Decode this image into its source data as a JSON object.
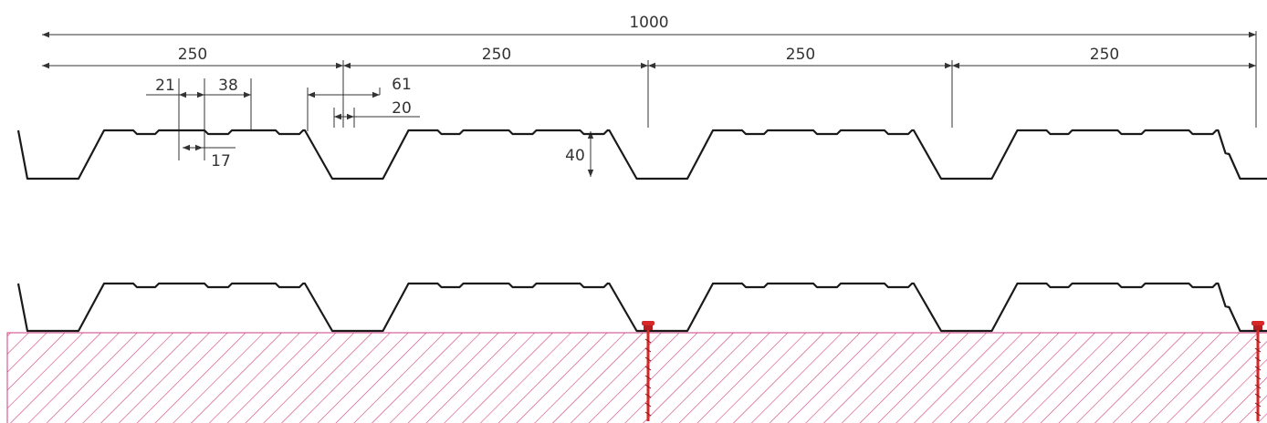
{
  "dimensions": {
    "total_width": "1000",
    "pitch_1": "250",
    "pitch_2": "250",
    "pitch_3": "250",
    "pitch_4": "250",
    "dim_21": "21",
    "dim_38": "38",
    "dim_61": "61",
    "dim_20": "20",
    "dim_17": "17",
    "height": "40"
  },
  "colors": {
    "profile_line": "#1a1a1a",
    "dimension_line": "#333333",
    "substrate_hatch": "#cf3f7f",
    "fastener": "#d62828"
  },
  "icons": {
    "fastener": "self-drilling-screw-icon"
  }
}
